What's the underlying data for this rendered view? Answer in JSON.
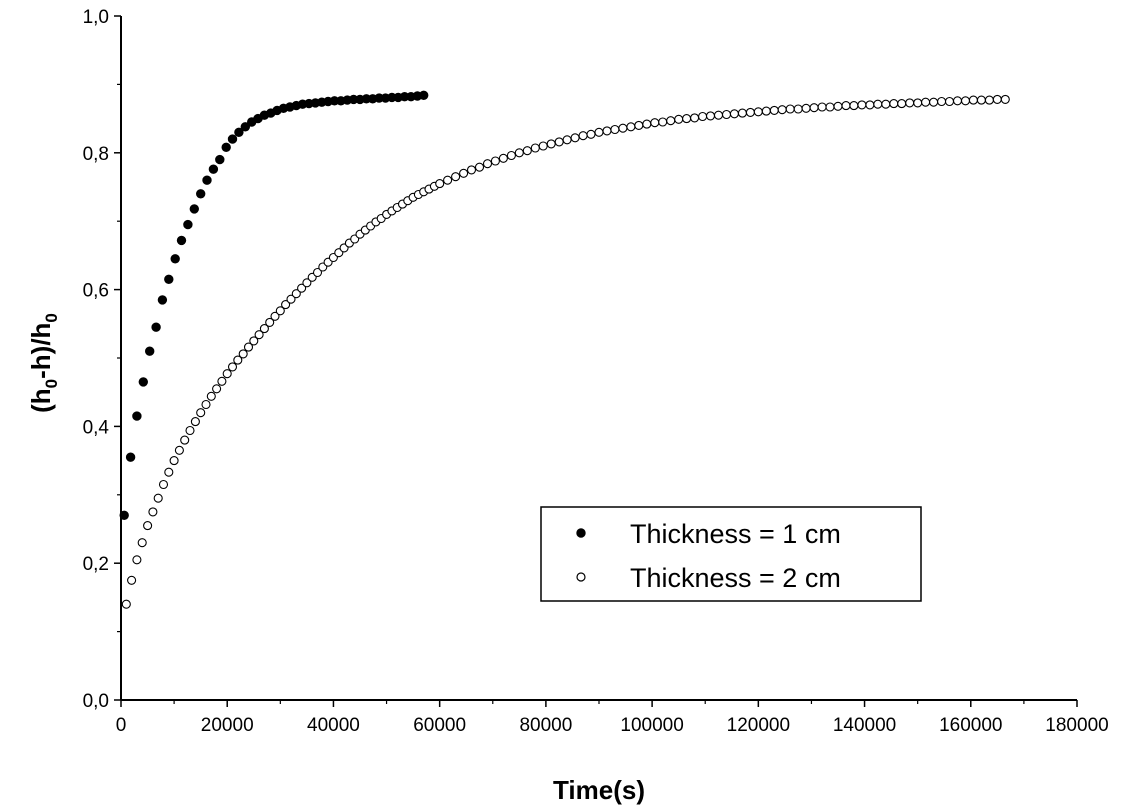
{
  "chart_data": {
    "type": "scatter",
    "xlabel": "Time(s)",
    "ylabel": {
      "parts": [
        "(h",
        "0",
        "-h)/h",
        "0"
      ]
    },
    "xlim": [
      0,
      180000
    ],
    "ylim": [
      0,
      1.0
    ],
    "x_ticks": [
      0,
      20000,
      40000,
      60000,
      80000,
      100000,
      120000,
      140000,
      160000,
      180000
    ],
    "x_tick_labels": [
      "0",
      "20000",
      "40000",
      "60000",
      "80000",
      "100000",
      "120000",
      "140000",
      "160000",
      "180000"
    ],
    "y_ticks": [
      0,
      0.2,
      0.4,
      0.6,
      0.8,
      1.0
    ],
    "y_tick_labels": [
      "0,0",
      "0,2",
      "0,4",
      "0,6",
      "0,8",
      "1,0"
    ],
    "grid": false,
    "legend": {
      "position": "center-right",
      "entries": [
        "Thickness = 1 cm",
        "Thickness = 2 cm"
      ]
    },
    "series": [
      {
        "name": "Thickness = 1 cm",
        "marker": "filled-circle",
        "x": [
          600,
          1800,
          3000,
          4200,
          5400,
          6600,
          7800,
          9000,
          10200,
          11400,
          12600,
          13800,
          15000,
          16200,
          17400,
          18600,
          19800,
          21000,
          22200,
          23400,
          24600,
          25800,
          27000,
          28200,
          29400,
          30600,
          31800,
          33000,
          34200,
          35400,
          36600,
          37800,
          39000,
          40200,
          41400,
          42600,
          43800,
          45000,
          46200,
          47400,
          48600,
          49800,
          51000,
          52200,
          53400,
          54600,
          55800,
          57000
        ],
        "y": [
          0.27,
          0.355,
          0.415,
          0.465,
          0.51,
          0.545,
          0.585,
          0.615,
          0.645,
          0.672,
          0.695,
          0.718,
          0.74,
          0.76,
          0.776,
          0.79,
          0.808,
          0.82,
          0.83,
          0.838,
          0.845,
          0.85,
          0.855,
          0.858,
          0.862,
          0.865,
          0.867,
          0.869,
          0.871,
          0.872,
          0.873,
          0.874,
          0.875,
          0.876,
          0.876,
          0.877,
          0.878,
          0.878,
          0.879,
          0.879,
          0.88,
          0.88,
          0.881,
          0.881,
          0.882,
          0.882,
          0.883,
          0.884
        ]
      },
      {
        "name": "Thickness = 2 cm",
        "marker": "open-circle",
        "x": [
          1000,
          2000,
          3000,
          4000,
          5000,
          6000,
          7000,
          8000,
          9000,
          10000,
          11000,
          12000,
          13000,
          14000,
          15000,
          16000,
          17000,
          18000,
          19000,
          20000,
          21000,
          22000,
          23000,
          24000,
          25000,
          26000,
          27000,
          28000,
          29000,
          30000,
          31000,
          32000,
          33000,
          34000,
          35000,
          36000,
          37000,
          38000,
          39000,
          40000,
          41000,
          42000,
          43000,
          44000,
          45000,
          46000,
          47000,
          48000,
          49000,
          50000,
          51000,
          52000,
          53000,
          54000,
          55000,
          56000,
          57000,
          58000,
          59000,
          60000,
          61500,
          63000,
          64500,
          66000,
          67500,
          69000,
          70500,
          72000,
          73500,
          75000,
          76500,
          78000,
          79500,
          81000,
          82500,
          84000,
          85500,
          87000,
          88500,
          90000,
          91500,
          93000,
          94500,
          96000,
          97500,
          99000,
          100500,
          102000,
          103500,
          105000,
          106500,
          108000,
          109500,
          111000,
          112500,
          114000,
          115500,
          117000,
          118500,
          120000,
          121500,
          123000,
          124500,
          126000,
          127500,
          129000,
          130500,
          132000,
          133500,
          135000,
          136500,
          138000,
          139500,
          141000,
          142500,
          144000,
          145500,
          147000,
          148500,
          150000,
          151500,
          153000,
          154500,
          156000,
          157500,
          159000,
          160500,
          162000,
          163500,
          165000,
          166500
        ],
        "y": [
          0.14,
          0.175,
          0.205,
          0.23,
          0.255,
          0.275,
          0.295,
          0.315,
          0.333,
          0.35,
          0.365,
          0.38,
          0.394,
          0.407,
          0.42,
          0.432,
          0.444,
          0.455,
          0.466,
          0.477,
          0.487,
          0.497,
          0.506,
          0.516,
          0.525,
          0.534,
          0.543,
          0.552,
          0.561,
          0.569,
          0.578,
          0.586,
          0.594,
          0.602,
          0.61,
          0.618,
          0.625,
          0.633,
          0.64,
          0.647,
          0.654,
          0.661,
          0.668,
          0.674,
          0.681,
          0.687,
          0.693,
          0.699,
          0.704,
          0.71,
          0.715,
          0.72,
          0.725,
          0.73,
          0.735,
          0.739,
          0.743,
          0.747,
          0.751,
          0.755,
          0.76,
          0.765,
          0.77,
          0.775,
          0.779,
          0.784,
          0.788,
          0.792,
          0.796,
          0.8,
          0.803,
          0.807,
          0.81,
          0.813,
          0.816,
          0.819,
          0.822,
          0.825,
          0.827,
          0.83,
          0.832,
          0.834,
          0.836,
          0.838,
          0.84,
          0.842,
          0.844,
          0.845,
          0.847,
          0.849,
          0.85,
          0.851,
          0.853,
          0.854,
          0.855,
          0.856,
          0.857,
          0.858,
          0.859,
          0.86,
          0.861,
          0.862,
          0.863,
          0.864,
          0.864,
          0.865,
          0.866,
          0.867,
          0.867,
          0.868,
          0.869,
          0.869,
          0.87,
          0.87,
          0.871,
          0.871,
          0.872,
          0.872,
          0.873,
          0.873,
          0.874,
          0.874,
          0.875,
          0.875,
          0.876,
          0.876,
          0.877,
          0.877,
          0.877,
          0.878,
          0.878
        ]
      }
    ]
  }
}
